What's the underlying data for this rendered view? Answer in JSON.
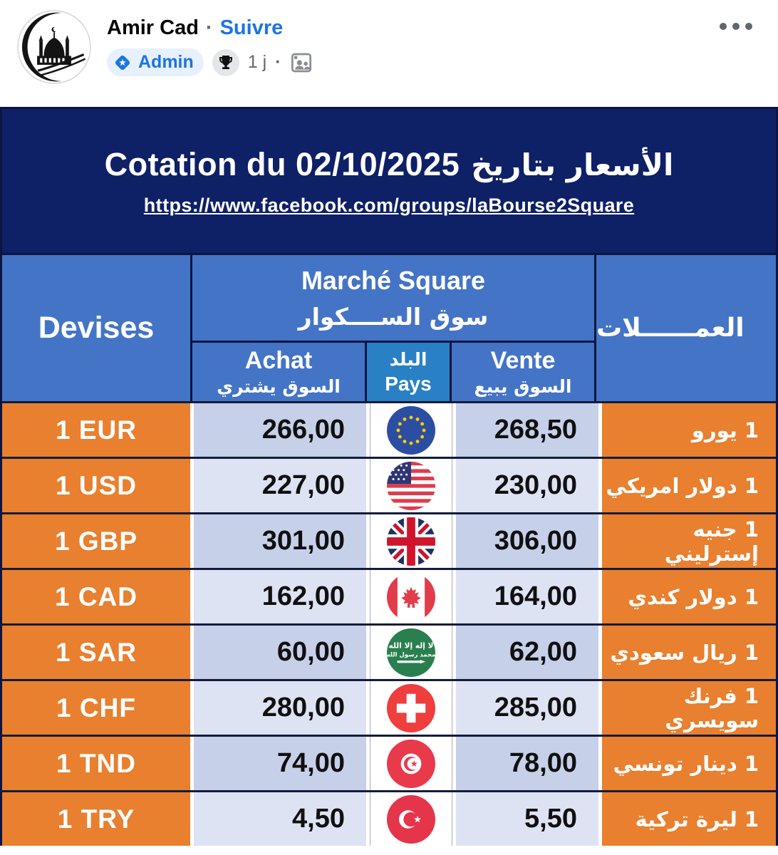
{
  "post_header": {
    "author": "Amir Cad",
    "dot_separator": "·",
    "follow_label": "Suivre",
    "admin_label": "Admin",
    "timestamp": "1 j",
    "meta_dot": "·"
  },
  "banner": {
    "title_fr": "Cotation du 02/10/2025",
    "title_ar": "الأسعار بتاريخ",
    "url": "https://www.facebook.com/groups/laBourse2Square"
  },
  "table": {
    "headers": {
      "devises": "Devises",
      "marche_fr": "Marché Square",
      "marche_ar": "سوق الســــكوار",
      "achat_fr": "Achat",
      "achat_ar": "السوق يشتري",
      "pays_ar": "البلد",
      "pays_fr": "Pays",
      "vente_fr": "Vente",
      "vente_ar": "السوق يبيع",
      "currencies_ar": "العمــــــلات"
    },
    "rows": [
      {
        "code": "1 EUR",
        "achat": "266,00",
        "flag": "eu-flag",
        "vente": "268,50",
        "name_ar": "1 يورو"
      },
      {
        "code": "1 USD",
        "achat": "227,00",
        "flag": "usa-flag",
        "vente": "230,00",
        "name_ar": "1 دولار امريكي"
      },
      {
        "code": "1 GBP",
        "achat": "301,00",
        "flag": "uk-flag",
        "vente": "306,00",
        "name_ar": "1 جنيه إسترليني"
      },
      {
        "code": "1 CAD",
        "achat": "162,00",
        "flag": "canada-flag",
        "vente": "164,00",
        "name_ar": "1 دولار كندي"
      },
      {
        "code": "1 SAR",
        "achat": "60,00",
        "flag": "saudi-flag",
        "vente": "62,00",
        "name_ar": "1 ريال سعودي"
      },
      {
        "code": "1 CHF",
        "achat": "280,00",
        "flag": "swiss-flag",
        "vente": "285,00",
        "name_ar": "1 فرنك سويسري"
      },
      {
        "code": "1 TND",
        "achat": "74,00",
        "flag": "tunisia-flag",
        "vente": "78,00",
        "name_ar": "1 دينار تونسي"
      },
      {
        "code": "1 TRY",
        "achat": "4,50",
        "flag": "turkey-flag",
        "vente": "5,50",
        "name_ar": "1 ليرة تركية"
      }
    ],
    "colors": {
      "banner_navy": "#0e2066",
      "header_blue": "#4474c6",
      "pays_blue": "#2a80c4",
      "orange": "#e8802f",
      "cell_dark": "#c6d0e9",
      "cell_light": "#dde3f3",
      "row_border": "#141c3a"
    }
  }
}
